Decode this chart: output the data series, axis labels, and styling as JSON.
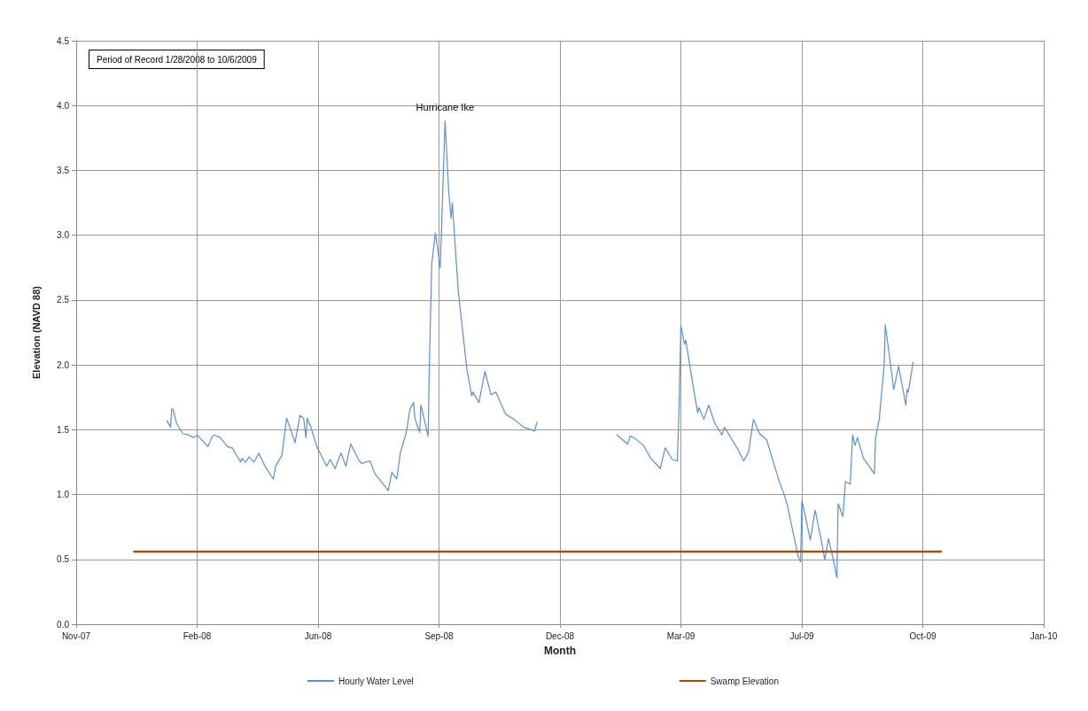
{
  "chart_data": {
    "type": "line",
    "xlabel": "Month",
    "ylabel": "Elevation (NAVD 88)",
    "annotations": [
      "Period of Record 1/28/2008 to 10/6/2009",
      {
        "text": "Hurricane Ike",
        "x": "2008-09-14",
        "y": 3.88
      }
    ],
    "xlim": [
      "2007-11-14",
      "2010-01-22"
    ],
    "xticks": [
      {
        "value": "2007-11-14",
        "label": "Nov-07"
      },
      {
        "value": "2008-02-22",
        "label": "Feb-08"
      },
      {
        "value": "2008-06-01",
        "label": "Jun-08"
      },
      {
        "value": "2008-09-09",
        "label": "Sep-08"
      },
      {
        "value": "2008-12-18",
        "label": "Dec-08"
      },
      {
        "value": "2009-03-28",
        "label": "Mar-09"
      },
      {
        "value": "2009-07-06",
        "label": "Jul-09"
      },
      {
        "value": "2009-10-14",
        "label": "Oct-09"
      },
      {
        "value": "2010-01-22",
        "label": "Jan-10"
      }
    ],
    "ylim": [
      0,
      4.5
    ],
    "yticks": [
      {
        "value": 0,
        "label": "0.0"
      },
      {
        "value": 0.5,
        "label": "0.5"
      },
      {
        "value": 1,
        "label": "1.0"
      },
      {
        "value": 1.5,
        "label": "1.5"
      },
      {
        "value": 2,
        "label": "2.0"
      },
      {
        "value": 2.5,
        "label": "2.5"
      },
      {
        "value": 3,
        "label": "3.0"
      },
      {
        "value": 3.5,
        "label": "3.5"
      },
      {
        "value": 4,
        "label": "4.0"
      },
      {
        "value": 4.5,
        "label": "4.5"
      }
    ],
    "grid": true,
    "legend": "bottom",
    "marker": "none",
    "line_style": "solid",
    "series": [
      {
        "name": "Hourly Water Level",
        "color": "#5b8fd8",
        "x": [
          "2008-01-28",
          "2008-01-31",
          "2008-02-01",
          "2008-02-02",
          "2008-02-05",
          "2008-02-10",
          "2008-02-15",
          "2008-02-19",
          "2008-02-22",
          "2008-03-02",
          "2008-03-05",
          "2008-03-07",
          "2008-03-12",
          "2008-03-18",
          "2008-03-22",
          "2008-03-29",
          "2008-03-30",
          "2008-04-02",
          "2008-04-05",
          "2008-04-09",
          "2008-04-13",
          "2008-04-18",
          "2008-04-25",
          "2008-04-27",
          "2008-05-02",
          "2008-05-06",
          "2008-05-13",
          "2008-05-17",
          "2008-05-20",
          "2008-05-22",
          "2008-05-23",
          "2008-05-26",
          "2008-05-31",
          "2008-06-08",
          "2008-06-11",
          "2008-06-15",
          "2008-06-20",
          "2008-06-24",
          "2008-06-28",
          "2008-07-05",
          "2008-07-07",
          "2008-07-14",
          "2008-07-18",
          "2008-07-25",
          "2008-07-29",
          "2008-08-01",
          "2008-08-05",
          "2008-08-08",
          "2008-08-13",
          "2008-08-16",
          "2008-08-19",
          "2008-08-20",
          "2008-08-24",
          "2008-08-25",
          "2008-08-31",
          "2008-09-01",
          "2008-09-03",
          "2008-09-06",
          "2008-09-10",
          "2008-09-14",
          "2008-09-17",
          "2008-09-19",
          "2008-09-20",
          "2008-09-25",
          "2008-10-02",
          "2008-10-06",
          "2008-10-07",
          "2008-10-12",
          "2008-10-17",
          "2008-10-22",
          "2008-10-26",
          "2008-11-03",
          "2008-11-10",
          "2008-11-18",
          "2008-11-27",
          "2008-11-29",
          "2008-12-20",
          "2009-02-03",
          "2009-02-12",
          "2009-02-14",
          "2009-02-17",
          "2009-02-25",
          "2009-03-03",
          "2009-03-11",
          "2009-03-15",
          "2009-03-21",
          "2009-03-25",
          "2009-03-26",
          "2009-03-28",
          "2009-03-31",
          "2009-04-01",
          "2009-04-09",
          "2009-04-11",
          "2009-04-12",
          "2009-04-16",
          "2009-04-20",
          "2009-04-25",
          "2009-05-01",
          "2009-05-03",
          "2009-05-14",
          "2009-05-19",
          "2009-05-23",
          "2009-05-27",
          "2009-06-01",
          "2009-06-07",
          "2009-06-17",
          "2009-06-21",
          "2009-06-24",
          "2009-07-03",
          "2009-07-05",
          "2009-07-06",
          "2009-07-07",
          "2009-07-13",
          "2009-07-17",
          "2009-07-22",
          "2009-07-25",
          "2009-07-28",
          "2009-07-31",
          "2009-08-04",
          "2009-08-05",
          "2009-08-09",
          "2009-08-11",
          "2009-08-15",
          "2009-08-17",
          "2009-08-19",
          "2009-08-21",
          "2009-08-26",
          "2009-09-04",
          "2009-09-05",
          "2009-09-08",
          "2009-09-12",
          "2009-09-13",
          "2009-09-16",
          "2009-09-20",
          "2009-09-24",
          "2009-09-30",
          "2009-10-01",
          "2009-10-02",
          "2009-10-06"
        ],
        "values": [
          1.57,
          1.52,
          1.66,
          1.66,
          1.55,
          1.47,
          1.46,
          1.44,
          1.46,
          1.37,
          1.44,
          1.46,
          1.44,
          1.37,
          1.36,
          1.25,
          1.28,
          1.25,
          1.29,
          1.25,
          1.32,
          1.22,
          1.12,
          1.22,
          1.3,
          1.59,
          1.4,
          1.61,
          1.59,
          1.44,
          1.59,
          1.52,
          1.37,
          1.22,
          1.27,
          1.2,
          1.32,
          1.22,
          1.39,
          1.26,
          1.24,
          1.26,
          1.16,
          1.08,
          1.03,
          1.17,
          1.12,
          1.32,
          1.48,
          1.66,
          1.71,
          1.59,
          1.48,
          1.69,
          1.45,
          1.99,
          2.78,
          3.02,
          2.75,
          3.88,
          3.34,
          3.13,
          3.25,
          2.56,
          1.97,
          1.76,
          1.79,
          1.71,
          1.95,
          1.77,
          1.79,
          1.62,
          1.58,
          1.52,
          1.49,
          1.56,
          null,
          1.46,
          1.39,
          1.45,
          1.44,
          1.38,
          1.28,
          1.2,
          1.36,
          1.27,
          1.26,
          1.5,
          2.3,
          2.16,
          2.19,
          1.73,
          1.63,
          1.67,
          1.58,
          1.69,
          1.55,
          1.46,
          1.52,
          1.35,
          1.26,
          1.33,
          1.58,
          1.47,
          1.42,
          1.11,
          1.01,
          0.92,
          0.52,
          0.48,
          0.95,
          0.92,
          0.65,
          0.88,
          0.65,
          0.5,
          0.66,
          0.54,
          0.36,
          0.93,
          0.83,
          1.1,
          1.08,
          1.46,
          1.38,
          1.44,
          1.28,
          1.16,
          1.44,
          1.58,
          1.99,
          2.31,
          2.1,
          1.81,
          1.99,
          1.69,
          1.81,
          1.79,
          2.02
        ]
      },
      {
        "name": "Swamp Elevation",
        "color": "#a84f0c",
        "x": [
          "2008-01-01",
          "2009-10-29"
        ],
        "values": [
          0.56,
          0.56
        ]
      }
    ]
  }
}
